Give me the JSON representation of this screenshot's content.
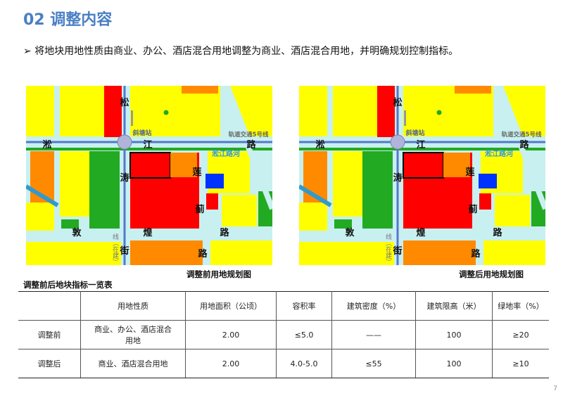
{
  "title": "02 调整内容",
  "bullet": "➢ 将地块用地性质由商业、办公、酒店混合用地调整为商业、酒店混合用地，并明确规划控制指标。",
  "maps": {
    "labels": {
      "song": "松",
      "tao": "涛",
      "jie": "街",
      "song2": "淞",
      "jiang": "江",
      "lu1": "路",
      "lian": "莲",
      "ji": "蓟",
      "lu2": "路",
      "dun": "敦",
      "huang": "煌",
      "lu3": "路",
      "station": "斜塘站",
      "metro": "轨道交通5号线",
      "river": "淞江路河",
      "line_building": "线（在建）"
    },
    "before_caption": "调整前用地规划图",
    "after_caption": "调整后用地规划图",
    "colors": {
      "yellow": "#ffff00",
      "red": "#ff0000",
      "orange": "#ff8a00",
      "green": "#22aa22",
      "blue": "#0033ff",
      "road": "#c8f0f0",
      "roadline": "#5577cc"
    }
  },
  "table": {
    "title": "调整前后地块指标一览表",
    "headers": [
      "",
      "用地性质",
      "用地面积（公顷）",
      "容积率",
      "建筑密度（%）",
      "建筑限高（米）",
      "绿地率（%）"
    ],
    "rows": [
      [
        "调整前",
        "商业、办公、酒店混合用地",
        "2.00",
        "≤5.0",
        "——",
        "100",
        "≥20"
      ],
      [
        "调整后",
        "商业、酒店混合用地",
        "2.00",
        "4.0-5.0",
        "≤55",
        "100",
        "≥10"
      ]
    ]
  },
  "page_number": "7"
}
